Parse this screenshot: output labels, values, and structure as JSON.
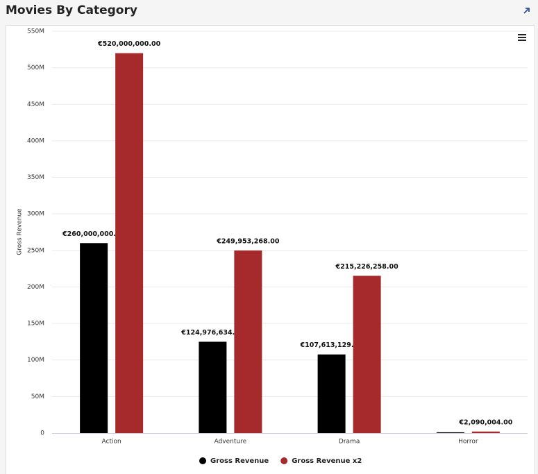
{
  "chart_data": {
    "type": "bar",
    "title": "Movies By Category",
    "y_label": "Gross Revenue",
    "categories": [
      "Action",
      "Adventure",
      "Drama",
      "Horror"
    ],
    "series": [
      {
        "name": "Gross Revenue",
        "color": "#000000",
        "values": [
          260000000,
          124976634,
          107613129,
          1045002
        ],
        "value_labels": [
          "€260,000,000.00",
          "€124,976,634.00",
          "€107,613,129.00",
          null
        ]
      },
      {
        "name": "Gross Revenue x2",
        "color": "#a6292b",
        "values": [
          520000000,
          249953268,
          215226258,
          2090004
        ],
        "value_labels": [
          "€520,000,000.00",
          "€249,953,268.00",
          "€215,226,258.00",
          "€2,090,004.00"
        ]
      }
    ],
    "ylim": [
      0,
      550000000
    ],
    "yticks": [
      0,
      {
        "value": 50000000,
        "label": "50M"
      },
      {
        "value": 100000000,
        "label": "100M"
      },
      {
        "value": 150000000,
        "label": "150M"
      },
      {
        "value": 200000000,
        "label": "200M"
      },
      {
        "value": 250000000,
        "label": "250M"
      },
      {
        "value": 300000000,
        "label": "300M"
      },
      {
        "value": 350000000,
        "label": "350M"
      },
      {
        "value": 400000000,
        "label": "400M"
      },
      {
        "value": 450000000,
        "label": "450M"
      },
      {
        "value": 500000000,
        "label": "500M"
      },
      {
        "value": 550000000,
        "label": "550M"
      }
    ],
    "grid": true,
    "legend": "bottom"
  }
}
